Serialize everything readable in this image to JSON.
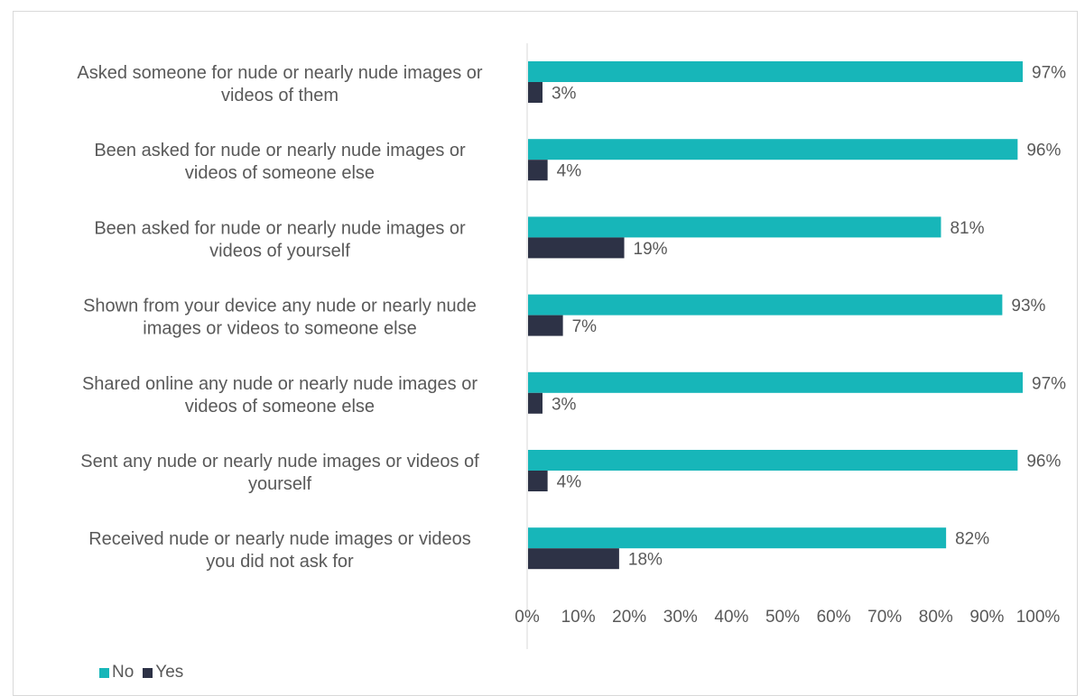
{
  "chart_data": {
    "type": "bar",
    "orientation": "horizontal",
    "categories": [
      [
        "Asked someone for nude or nearly nude images or",
        "videos of them"
      ],
      [
        "Been asked for nude or nearly nude images or",
        "videos of someone else"
      ],
      [
        "Been asked for nude or nearly nude images or",
        "videos of yourself"
      ],
      [
        "Shown from your device any nude or nearly nude",
        "images or videos to someone else"
      ],
      [
        "Shared online any nude or nearly nude images or",
        "videos of someone else"
      ],
      [
        "Sent any nude or nearly nude images or videos of",
        "yourself"
      ],
      [
        "Received nude or nearly nude images or videos",
        "you did not ask for"
      ]
    ],
    "series": [
      {
        "name": "No",
        "color": "#17b6b9",
        "values": [
          97,
          96,
          81,
          93,
          97,
          96,
          82
        ],
        "labels": [
          "97%",
          "96%",
          "81%",
          "93%",
          "97%",
          "96%",
          "82%"
        ]
      },
      {
        "name": "Yes",
        "color": "#2d3246",
        "values": [
          3,
          4,
          19,
          7,
          3,
          4,
          18
        ],
        "labels": [
          "3%",
          "4%",
          "19%",
          "7%",
          "3%",
          "4%",
          "18%"
        ]
      }
    ],
    "xlim": [
      0,
      100
    ],
    "xticks": [
      "0%",
      "10%",
      "20%",
      "30%",
      "40%",
      "50%",
      "60%",
      "70%",
      "80%",
      "90%",
      "100%"
    ],
    "grid": false,
    "legend_position": "bottom-left"
  }
}
